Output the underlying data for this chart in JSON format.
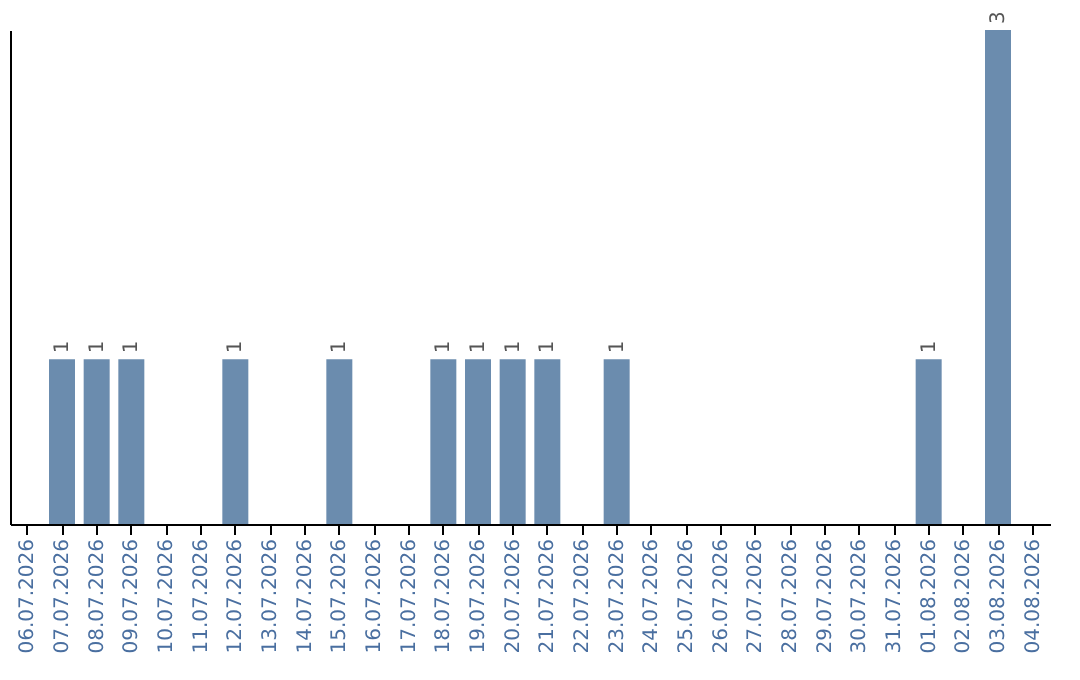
{
  "chart_data": {
    "type": "bar",
    "categories": [
      "06.07.2026",
      "07.07.2026",
      "08.07.2026",
      "09.07.2026",
      "10.07.2026",
      "11.07.2026",
      "12.07.2026",
      "13.07.2026",
      "14.07.2026",
      "15.07.2026",
      "16.07.2026",
      "17.07.2026",
      "18.07.2026",
      "19.07.2026",
      "20.07.2026",
      "21.07.2026",
      "22.07.2026",
      "23.07.2026",
      "24.07.2026",
      "25.07.2026",
      "26.07.2026",
      "27.07.2026",
      "28.07.2026",
      "29.07.2026",
      "30.07.2026",
      "31.07.2026",
      "01.08.2026",
      "02.08.2026",
      "03.08.2026",
      "04.08.2026"
    ],
    "values": [
      0,
      1,
      1,
      1,
      0,
      0,
      1,
      0,
      0,
      1,
      0,
      0,
      1,
      1,
      1,
      1,
      0,
      1,
      0,
      0,
      0,
      0,
      0,
      0,
      0,
      0,
      1,
      0,
      3,
      0
    ],
    "color": "#6b8cae",
    "value_labels": [
      null,
      "1",
      "1",
      "1",
      null,
      null,
      "1",
      null,
      null,
      "1",
      null,
      null,
      "1",
      "1",
      "1",
      "1",
      null,
      "1",
      null,
      null,
      null,
      null,
      null,
      null,
      null,
      null,
      "1",
      null,
      "3",
      null
    ],
    "grid": false,
    "tick_labels": "x"
  }
}
